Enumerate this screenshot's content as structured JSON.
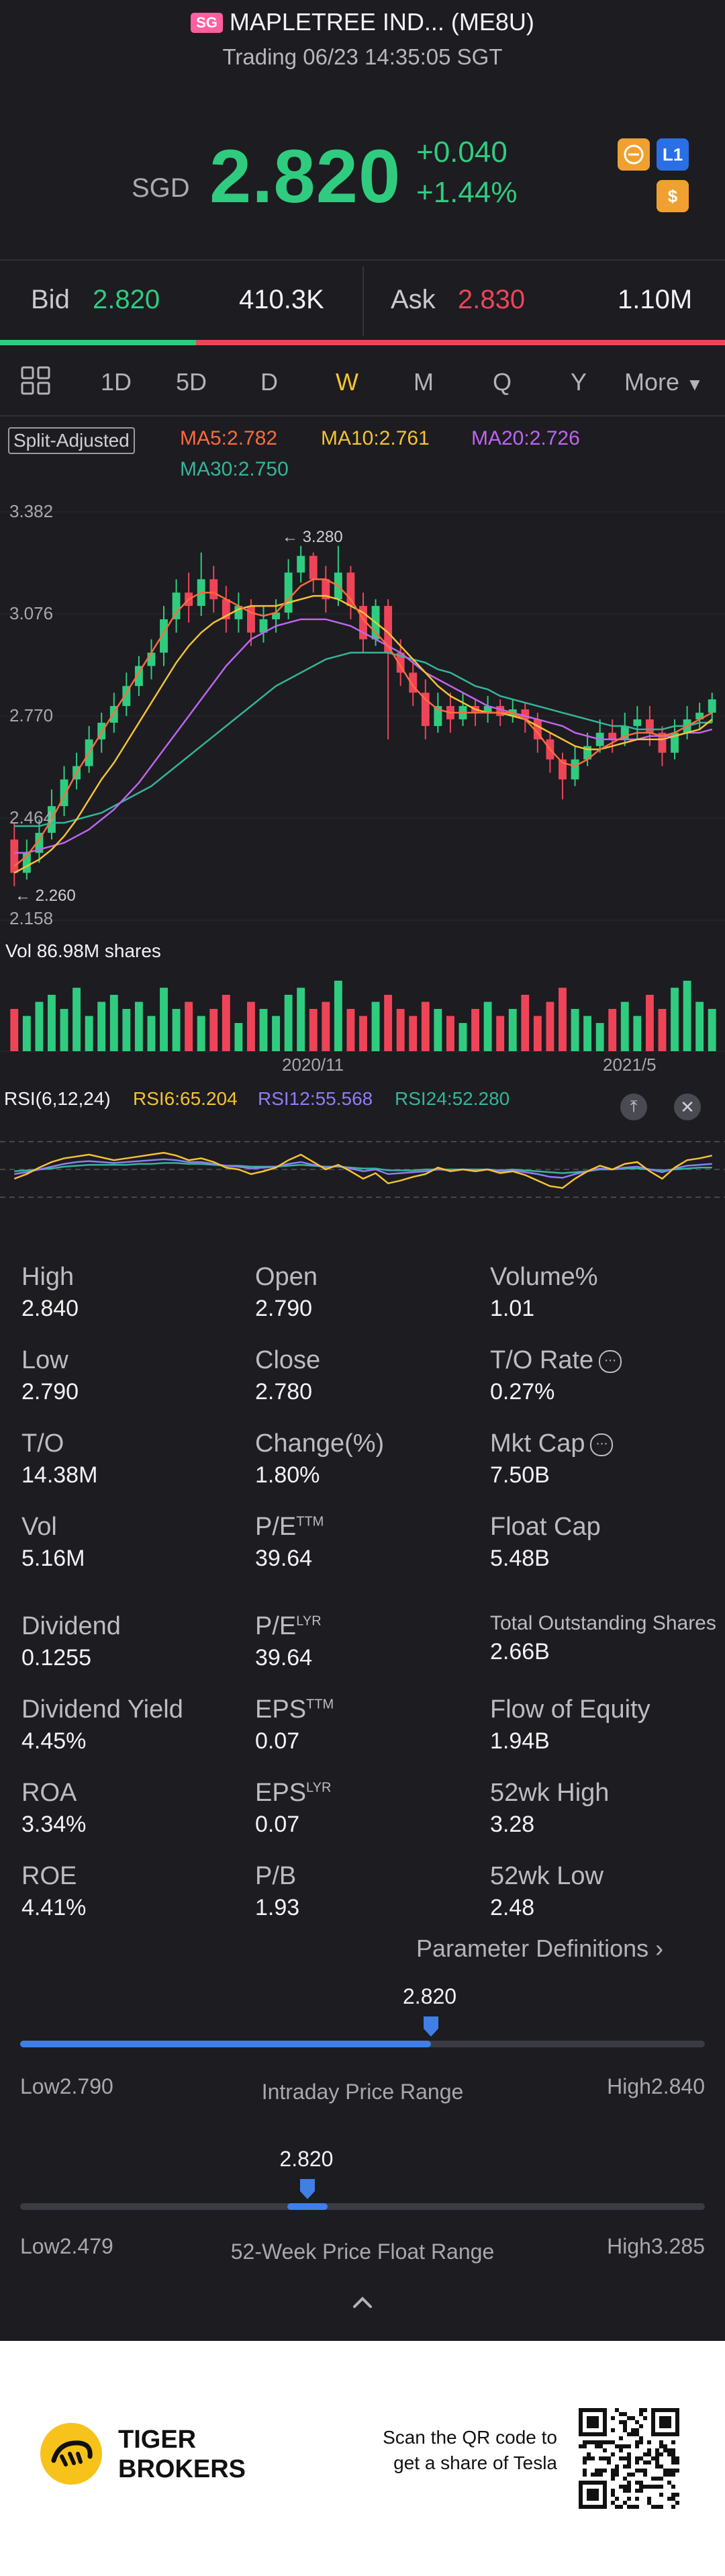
{
  "header": {
    "badge": "SG",
    "title": "MAPLETREE IND... (ME8U)",
    "subtitle": "Trading 06/23 14:35:05 SGT"
  },
  "quote": {
    "currency": "SGD",
    "price": "2.820",
    "change": "+0.040",
    "change_pct": "+1.44%",
    "icons": [
      "trade-icon",
      "level1-icon",
      "dollar-icon"
    ],
    "icon_labels": {
      "level1": "L1",
      "dollar": "$"
    }
  },
  "bidask": {
    "bid_label": "Bid",
    "bid_price": "2.820",
    "bid_size": "410.3K",
    "ask_label": "Ask",
    "ask_price": "2.830",
    "ask_size": "1.10M",
    "bid_ratio": 0.27
  },
  "tabs": {
    "items": [
      "1D",
      "5D",
      "D",
      "W",
      "M",
      "Q",
      "Y",
      "More"
    ],
    "active": "W"
  },
  "chart": {
    "split_label": "Split-Adjusted",
    "ma": [
      {
        "label": "MA5:2.782",
        "color": "#ff6b3d"
      },
      {
        "label": "MA10:2.761",
        "color": "#f5c331"
      },
      {
        "label": "MA20:2.726",
        "color": "#c065f0"
      },
      {
        "label": "MA30:2.750",
        "color": "#35b59a"
      }
    ],
    "y_ticks": [
      "3.382",
      "3.076",
      "2.770",
      "2.464",
      "2.158"
    ],
    "high_annot": "3.280",
    "low_annot": "2.260",
    "vol_label": "Vol   86.98M shares",
    "x_ticks": [
      "2020/11",
      "2021/5"
    ],
    "rsi_label": "RSI(6,12,24)",
    "rsi": [
      {
        "label": "RSI6:65.204",
        "color": "#f5c331"
      },
      {
        "label": "RSI12:55.568",
        "color": "#8f7cf7"
      },
      {
        "label": "RSI24:52.280",
        "color": "#35b59a"
      }
    ]
  },
  "chart_data": {
    "type": "candlestick",
    "ylim": [
      2.158,
      3.382
    ],
    "candles": [
      [
        2.4,
        2.3,
        2.45,
        2.26
      ],
      [
        2.3,
        2.36,
        2.4,
        2.28
      ],
      [
        2.36,
        2.42,
        2.46,
        2.33
      ],
      [
        2.42,
        2.5,
        2.55,
        2.4
      ],
      [
        2.5,
        2.58,
        2.62,
        2.47
      ],
      [
        2.58,
        2.62,
        2.66,
        2.55
      ],
      [
        2.62,
        2.7,
        2.74,
        2.6
      ],
      [
        2.7,
        2.75,
        2.78,
        2.66
      ],
      [
        2.75,
        2.8,
        2.84,
        2.72
      ],
      [
        2.8,
        2.86,
        2.9,
        2.77
      ],
      [
        2.86,
        2.92,
        2.95,
        2.83
      ],
      [
        2.92,
        2.96,
        3.0,
        2.88
      ],
      [
        2.96,
        3.06,
        3.1,
        2.92
      ],
      [
        3.06,
        3.14,
        3.18,
        3.02
      ],
      [
        3.14,
        3.1,
        3.2,
        3.05
      ],
      [
        3.1,
        3.18,
        3.26,
        3.07
      ],
      [
        3.18,
        3.12,
        3.22,
        3.08
      ],
      [
        3.12,
        3.06,
        3.16,
        3.02
      ],
      [
        3.06,
        3.1,
        3.14,
        3.02
      ],
      [
        3.1,
        3.02,
        3.12,
        2.98
      ],
      [
        3.02,
        3.06,
        3.1,
        2.99
      ],
      [
        3.06,
        3.08,
        3.12,
        3.02
      ],
      [
        3.08,
        3.2,
        3.24,
        3.06
      ],
      [
        3.2,
        3.25,
        3.28,
        3.17
      ],
      [
        3.25,
        3.18,
        3.26,
        3.14
      ],
      [
        3.18,
        3.12,
        3.22,
        3.08
      ],
      [
        3.12,
        3.2,
        3.28,
        3.1
      ],
      [
        3.2,
        3.1,
        3.22,
        3.06
      ],
      [
        3.1,
        3.0,
        3.14,
        2.96
      ],
      [
        3.0,
        3.1,
        3.12,
        2.98
      ],
      [
        3.1,
        2.96,
        3.12,
        2.7
      ],
      [
        2.96,
        2.9,
        3.0,
        2.86
      ],
      [
        2.9,
        2.84,
        2.94,
        2.8
      ],
      [
        2.84,
        2.74,
        2.88,
        2.7
      ],
      [
        2.74,
        2.8,
        2.84,
        2.72
      ],
      [
        2.8,
        2.76,
        2.84,
        2.72
      ],
      [
        2.76,
        2.8,
        2.84,
        2.74
      ],
      [
        2.8,
        2.78,
        2.82,
        2.74
      ],
      [
        2.78,
        2.8,
        2.83,
        2.75
      ],
      [
        2.8,
        2.77,
        2.82,
        2.74
      ],
      [
        2.77,
        2.79,
        2.82,
        2.75
      ],
      [
        2.79,
        2.76,
        2.81,
        2.72
      ],
      [
        2.76,
        2.7,
        2.78,
        2.66
      ],
      [
        2.7,
        2.64,
        2.72,
        2.6
      ],
      [
        2.64,
        2.58,
        2.66,
        2.52
      ],
      [
        2.58,
        2.64,
        2.68,
        2.56
      ],
      [
        2.64,
        2.68,
        2.72,
        2.62
      ],
      [
        2.68,
        2.72,
        2.76,
        2.66
      ],
      [
        2.72,
        2.7,
        2.76,
        2.66
      ],
      [
        2.7,
        2.74,
        2.78,
        2.68
      ],
      [
        2.74,
        2.76,
        2.8,
        2.7
      ],
      [
        2.76,
        2.72,
        2.8,
        2.68
      ],
      [
        2.72,
        2.66,
        2.74,
        2.62
      ],
      [
        2.66,
        2.72,
        2.76,
        2.64
      ],
      [
        2.72,
        2.76,
        2.8,
        2.7
      ],
      [
        2.76,
        2.78,
        2.81,
        2.73
      ],
      [
        2.78,
        2.82,
        2.84,
        2.75
      ]
    ],
    "volume": [
      0.6,
      0.5,
      0.7,
      0.8,
      0.6,
      0.9,
      0.5,
      0.7,
      0.8,
      0.6,
      0.7,
      0.5,
      0.9,
      0.6,
      0.7,
      0.5,
      0.6,
      0.8,
      0.4,
      0.7,
      0.6,
      0.5,
      0.8,
      0.9,
      0.6,
      0.7,
      1.0,
      0.6,
      0.5,
      0.7,
      0.8,
      0.6,
      0.5,
      0.7,
      0.6,
      0.5,
      0.4,
      0.6,
      0.7,
      0.5,
      0.6,
      0.8,
      0.5,
      0.7,
      0.9,
      0.6,
      0.5,
      0.4,
      0.6,
      0.7,
      0.5,
      0.8,
      0.6,
      0.9,
      1.0,
      0.7,
      0.6
    ],
    "ma5": [
      2.32,
      2.35,
      2.4,
      2.46,
      2.53,
      2.6,
      2.66,
      2.72,
      2.78,
      2.84,
      2.9,
      2.96,
      3.02,
      3.08,
      3.12,
      3.14,
      3.14,
      3.12,
      3.1,
      3.08,
      3.07,
      3.08,
      3.12,
      3.16,
      3.18,
      3.18,
      3.16,
      3.12,
      3.06,
      3.02,
      2.98,
      2.92,
      2.86,
      2.82,
      2.79,
      2.78,
      2.78,
      2.78,
      2.78,
      2.78,
      2.78,
      2.76,
      2.72,
      2.67,
      2.63,
      2.62,
      2.64,
      2.67,
      2.69,
      2.71,
      2.72,
      2.72,
      2.71,
      2.72,
      2.74,
      2.76,
      2.78
    ],
    "ma10": [
      2.3,
      2.32,
      2.34,
      2.37,
      2.41,
      2.46,
      2.52,
      2.58,
      2.63,
      2.69,
      2.75,
      2.81,
      2.87,
      2.93,
      2.98,
      3.02,
      3.05,
      3.07,
      3.09,
      3.1,
      3.1,
      3.1,
      3.11,
      3.12,
      3.13,
      3.13,
      3.12,
      3.1,
      3.08,
      3.05,
      3.02,
      2.98,
      2.94,
      2.9,
      2.86,
      2.83,
      2.81,
      2.79,
      2.78,
      2.78,
      2.77,
      2.76,
      2.74,
      2.72,
      2.7,
      2.68,
      2.67,
      2.67,
      2.68,
      2.69,
      2.7,
      2.7,
      2.7,
      2.71,
      2.72,
      2.73,
      2.76
    ],
    "ma20": [
      2.36,
      2.36,
      2.37,
      2.38,
      2.39,
      2.41,
      2.43,
      2.46,
      2.49,
      2.53,
      2.57,
      2.62,
      2.67,
      2.72,
      2.77,
      2.82,
      2.87,
      2.92,
      2.96,
      3.0,
      3.02,
      3.04,
      3.05,
      3.06,
      3.06,
      3.06,
      3.05,
      3.04,
      3.02,
      3.0,
      2.98,
      2.96,
      2.93,
      2.9,
      2.88,
      2.86,
      2.84,
      2.82,
      2.8,
      2.79,
      2.78,
      2.77,
      2.76,
      2.75,
      2.74,
      2.72,
      2.71,
      2.7,
      2.7,
      2.7,
      2.7,
      2.71,
      2.71,
      2.71,
      2.72,
      2.72,
      2.73
    ],
    "ma30": [
      2.44,
      2.44,
      2.44,
      2.45,
      2.45,
      2.46,
      2.47,
      2.48,
      2.5,
      2.52,
      2.54,
      2.56,
      2.59,
      2.62,
      2.65,
      2.68,
      2.71,
      2.74,
      2.77,
      2.8,
      2.83,
      2.86,
      2.88,
      2.9,
      2.92,
      2.94,
      2.95,
      2.96,
      2.96,
      2.96,
      2.96,
      2.95,
      2.94,
      2.93,
      2.91,
      2.9,
      2.88,
      2.86,
      2.85,
      2.83,
      2.82,
      2.81,
      2.8,
      2.79,
      2.78,
      2.77,
      2.76,
      2.75,
      2.74,
      2.74,
      2.73,
      2.73,
      2.73,
      2.74,
      2.74,
      2.75,
      2.75
    ],
    "rsi6": [
      40,
      45,
      52,
      58,
      62,
      64,
      66,
      63,
      60,
      62,
      64,
      66,
      68,
      65,
      60,
      62,
      58,
      52,
      50,
      45,
      48,
      52,
      60,
      66,
      58,
      50,
      55,
      48,
      40,
      46,
      35,
      38,
      42,
      45,
      52,
      48,
      50,
      48,
      50,
      46,
      48,
      44,
      38,
      32,
      30,
      40,
      48,
      54,
      50,
      56,
      58,
      48,
      40,
      52,
      60,
      62,
      65
    ],
    "rsi12": [
      45,
      47,
      50,
      53,
      56,
      58,
      59,
      58,
      57,
      58,
      59,
      60,
      61,
      60,
      58,
      58,
      56,
      54,
      53,
      51,
      52,
      53,
      56,
      58,
      55,
      52,
      54,
      51,
      48,
      50,
      45,
      46,
      47,
      48,
      50,
      49,
      50,
      49,
      50,
      48,
      49,
      47,
      45,
      42,
      41,
      45,
      48,
      51,
      50,
      52,
      53,
      50,
      47,
      51,
      54,
      55,
      56
    ],
    "rsi24": [
      48,
      49,
      50,
      51,
      53,
      54,
      55,
      55,
      55,
      55,
      56,
      56,
      57,
      57,
      56,
      56,
      55,
      54,
      54,
      53,
      53,
      53,
      54,
      55,
      54,
      53,
      53,
      52,
      51,
      51,
      49,
      49,
      49,
      50,
      50,
      50,
      50,
      50,
      50,
      49,
      50,
      49,
      48,
      47,
      46,
      47,
      48,
      50,
      50,
      51,
      51,
      50,
      49,
      50,
      51,
      52,
      52
    ]
  },
  "stats": [
    {
      "label": "High",
      "value": "2.840"
    },
    {
      "label": "Open",
      "value": "2.790"
    },
    {
      "label": "Volume%",
      "value": "1.01"
    },
    {
      "label": "Low",
      "value": "2.790"
    },
    {
      "label": "Close",
      "value": "2.780"
    },
    {
      "label": "T/O Rate",
      "value": "0.27%"
    },
    {
      "label": "T/O",
      "value": "14.38M"
    },
    {
      "label": "Change(%)",
      "value": "1.80%"
    },
    {
      "label": "Mkt Cap",
      "value": "7.50B"
    },
    {
      "label": "Vol",
      "value": "5.16M"
    },
    {
      "label": "P/E",
      "sup": "TTM",
      "value": "39.64"
    },
    {
      "label": "Float Cap",
      "value": "5.48B"
    },
    {
      "label": "Dividend",
      "value": "0.1255"
    },
    {
      "label": "P/E",
      "sup": "LYR",
      "value": "39.64"
    },
    {
      "label": "Total Outstanding Shares",
      "value": "2.66B"
    },
    {
      "label": "Dividend Yield",
      "value": "4.45%"
    },
    {
      "label": "EPS",
      "sup": "TTM",
      "value": "0.07"
    },
    {
      "label": "Flow of Equity",
      "value": "1.94B"
    },
    {
      "label": "ROA",
      "value": "3.34%"
    },
    {
      "label": "EPS",
      "sup": "LYR",
      "value": "0.07"
    },
    {
      "label": "52wk High",
      "value": "3.28"
    },
    {
      "label": "ROE",
      "value": "4.41%"
    },
    {
      "label": "P/B",
      "value": "1.93"
    },
    {
      "label": "52wk Low",
      "value": "2.48"
    }
  ],
  "param_link": "Parameter Definitions",
  "intraday": {
    "value": "2.820",
    "low": "Low2.790",
    "high": "High2.840",
    "title": "Intraday Price Range",
    "fraction": 0.6
  },
  "week52": {
    "value": "2.820",
    "low": "Low2.479",
    "high": "High3.285",
    "title": "52-Week Price Float Range",
    "fraction": 0.42
  },
  "footer": {
    "brand_line1": "TIGER",
    "brand_line2": "BROKERS",
    "qr_line1": "Scan the QR code to",
    "qr_line2": "get a share of Tesla"
  }
}
